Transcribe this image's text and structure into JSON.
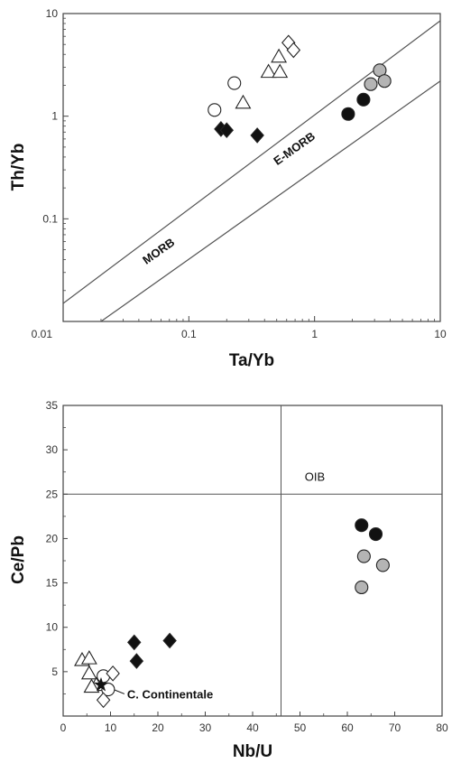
{
  "chart_data": [
    {
      "type": "scatter",
      "xlabel": "Ta/Yb",
      "ylabel": "Th/Yb",
      "xscale": "log",
      "yscale": "log",
      "xlim": [
        0.01,
        10
      ],
      "ylim": [
        0.01,
        10
      ],
      "x_ticks": [
        "0.01",
        "0.1",
        "1",
        "10"
      ],
      "y_ticks": [
        "0.01",
        "0.1",
        "1",
        "10"
      ],
      "annotations": [
        {
          "text": "MORB",
          "x": 0.06,
          "y": 0.045
        },
        {
          "text": "E-MORB",
          "x": 0.72,
          "y": 0.45
        }
      ],
      "band": {
        "lower": [
          [
            0.02,
            0.01
          ],
          [
            10,
            2.2
          ]
        ],
        "upper": [
          [
            0.01,
            0.015
          ],
          [
            10,
            8.5
          ]
        ]
      },
      "series": [
        {
          "marker": "open-circle",
          "points": [
            [
              0.16,
              1.15
            ],
            [
              0.23,
              2.1
            ]
          ]
        },
        {
          "marker": "open-triangle",
          "points": [
            [
              0.27,
              1.35
            ],
            [
              0.43,
              2.7
            ],
            [
              0.53,
              2.7
            ],
            [
              0.52,
              3.8
            ]
          ]
        },
        {
          "marker": "open-diamond",
          "points": [
            [
              0.62,
              5.2
            ],
            [
              0.68,
              4.4
            ]
          ]
        },
        {
          "marker": "filled-diamond",
          "points": [
            [
              0.18,
              0.75
            ],
            [
              0.2,
              0.73
            ],
            [
              0.35,
              0.65
            ]
          ]
        },
        {
          "marker": "filled-circle",
          "points": [
            [
              1.85,
              1.05
            ],
            [
              2.45,
              1.45
            ]
          ]
        },
        {
          "marker": "gray-circle",
          "points": [
            [
              2.8,
              2.05
            ],
            [
              3.3,
              2.8
            ],
            [
              3.6,
              2.2
            ]
          ]
        }
      ]
    },
    {
      "type": "scatter",
      "xlabel": "Nb/U",
      "ylabel": "Ce/Pb",
      "xlim": [
        0,
        80
      ],
      "ylim": [
        0,
        35
      ],
      "x_ticks": [
        "0",
        "10",
        "20",
        "30",
        "40",
        "50",
        "60",
        "70",
        "80"
      ],
      "y_ticks": [
        "5",
        "10",
        "15",
        "20",
        "25",
        "30",
        "35"
      ],
      "reference_lines": {
        "vertical_x": 46,
        "horizontal_y": 25
      },
      "annotations": [
        {
          "text": "OIB",
          "x": 51,
          "y": 26.5
        },
        {
          "text": "C. Continentale",
          "x": 13.5,
          "y": 2.5
        }
      ],
      "series": [
        {
          "marker": "open-triangle",
          "points": [
            [
              4,
              6.3
            ],
            [
              5.5,
              6.5
            ],
            [
              5.5,
              4.8
            ],
            [
              7,
              3.5
            ],
            [
              6,
              3.3
            ]
          ]
        },
        {
          "marker": "open-circle",
          "points": [
            [
              8.5,
              4.5
            ],
            [
              9.5,
              3.0
            ]
          ]
        },
        {
          "marker": "open-diamond",
          "points": [
            [
              10.5,
              4.8
            ],
            [
              8.5,
              1.8
            ]
          ]
        },
        {
          "marker": "star",
          "points": [
            [
              8,
              3.5
            ]
          ]
        },
        {
          "marker": "filled-diamond",
          "points": [
            [
              15,
              8.3
            ],
            [
              15.5,
              6.2
            ],
            [
              22.5,
              8.5
            ]
          ]
        },
        {
          "marker": "filled-circle",
          "points": [
            [
              63,
              21.5
            ],
            [
              66,
              20.5
            ]
          ]
        },
        {
          "marker": "gray-circle",
          "points": [
            [
              63.5,
              18
            ],
            [
              67.5,
              17
            ],
            [
              63,
              14.5
            ]
          ]
        }
      ]
    }
  ],
  "colors": {
    "axis": "#444444",
    "band": "#555555",
    "filled": "#111111",
    "gray": "#b4b4b4",
    "open_stroke": "#222222"
  }
}
